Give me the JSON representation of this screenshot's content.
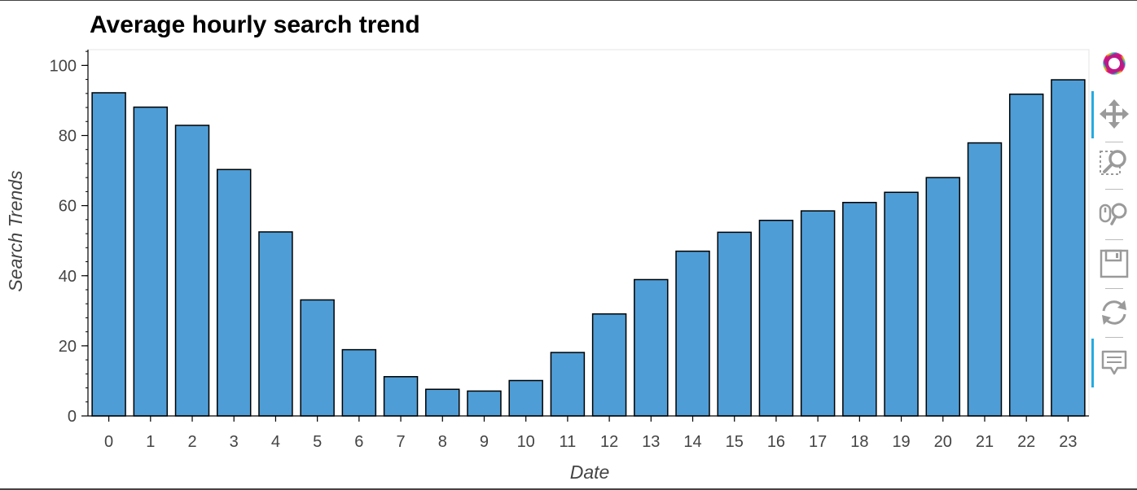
{
  "chart_data": {
    "type": "bar",
    "title": "Average hourly search trend",
    "xlabel": "Date",
    "ylabel": "Search Trends",
    "categories": [
      "0",
      "1",
      "2",
      "3",
      "4",
      "5",
      "6",
      "7",
      "8",
      "9",
      "10",
      "11",
      "12",
      "13",
      "14",
      "15",
      "16",
      "17",
      "18",
      "19",
      "20",
      "21",
      "22",
      "23"
    ],
    "values": [
      92.2,
      88.1,
      82.9,
      70.3,
      52.5,
      33.1,
      18.9,
      11.2,
      7.6,
      7.1,
      10.1,
      18.1,
      29.1,
      38.9,
      47.0,
      52.4,
      55.8,
      58.5,
      60.9,
      63.8,
      68.0,
      77.9,
      91.8,
      95.9
    ],
    "ylim": [
      0,
      104.5
    ],
    "yticks": [
      0,
      20,
      40,
      60,
      80,
      100
    ],
    "bar_color": "#4f9dd6",
    "bar_edge_color": "#000000",
    "grid": false,
    "legend": "none"
  },
  "toolbar": {
    "tools": [
      {
        "name": "bokeh-logo-icon",
        "active": false
      },
      {
        "name": "pan-icon",
        "active": true
      },
      {
        "name": "box-zoom-icon",
        "active": true
      },
      {
        "name": "wheel-zoom-icon",
        "active": false
      },
      {
        "name": "save-icon",
        "active": false
      },
      {
        "name": "reset-icon",
        "active": false
      },
      {
        "name": "hover-icon",
        "active": true
      }
    ],
    "accent_color": "#26aae1"
  }
}
